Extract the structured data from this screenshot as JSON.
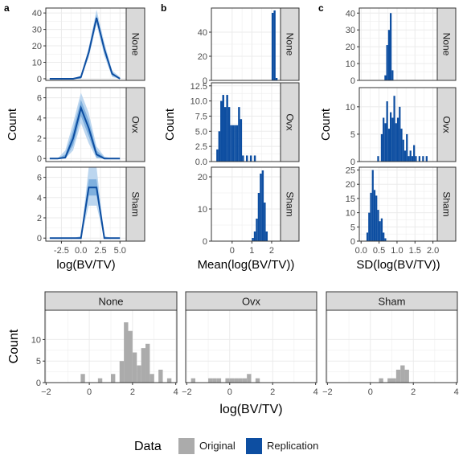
{
  "colors": {
    "original": "#ababab",
    "replication": "#0d4ea1",
    "band_light": "#bcd6ef",
    "band_mid": "#7fb0de",
    "strip_fill": "#d9d9d9",
    "grid": "#ebebeb",
    "panel_border": "#333333"
  },
  "legend": {
    "title": "Data",
    "items": [
      {
        "label": "Original",
        "color": "#ababab"
      },
      {
        "label": "Replication",
        "color": "#0d4ea1"
      }
    ]
  },
  "chart_data": [
    {
      "id": "a",
      "panel_label": "a",
      "type": "line",
      "ylabel": "Count",
      "xlabel": "log(BV/TV)",
      "xlim": [
        -4.5,
        5.8
      ],
      "xticks": [
        -2.5,
        0.0,
        2.5,
        5.0
      ],
      "xtick_labels": [
        "-2.5",
        "0.0",
        "2.5",
        "5.0"
      ],
      "facets": [
        {
          "strip": "None",
          "ylim": [
            -1,
            43
          ],
          "yticks": [
            0,
            10,
            20,
            30,
            40
          ],
          "x": [
            -4,
            -3,
            -2,
            -1,
            0,
            1,
            2,
            3,
            4,
            5
          ],
          "median": [
            0,
            0,
            0,
            0,
            1,
            16,
            37,
            18,
            3,
            0
          ],
          "band_outer": {
            "lo": [
              0,
              0,
              0,
              0,
              0,
              13,
              33,
              14,
              1,
              0
            ],
            "hi": [
              0,
              0,
              0,
              0,
              2,
              19,
              42,
              22,
              5,
              1
            ]
          },
          "band_inner": {
            "lo": [
              0,
              0,
              0,
              0,
              0,
              15,
              35,
              16,
              2,
              0
            ],
            "hi": [
              0,
              0,
              0,
              0,
              1,
              17,
              39,
              20,
              4,
              0
            ]
          }
        },
        {
          "strip": "Ovx",
          "ylim": [
            -0.3,
            7
          ],
          "yticks": [
            0,
            2,
            4,
            6
          ],
          "x": [
            -4,
            -3,
            -2,
            -1,
            0,
            1,
            2,
            3,
            4,
            5
          ],
          "median": [
            0,
            0,
            0.1,
            2.0,
            5.0,
            3.0,
            0.4,
            0.0,
            0,
            0
          ],
          "band_outer": {
            "lo": [
              0,
              0,
              0,
              0.8,
              3.5,
              1.5,
              0,
              0,
              0,
              0
            ],
            "hi": [
              0,
              0,
              0.8,
              3.5,
              6.5,
              4.5,
              1.2,
              0.2,
              0,
              0
            ]
          },
          "band_inner": {
            "lo": [
              0,
              0,
              0,
              1.3,
              4.2,
              2.2,
              0.1,
              0,
              0,
              0
            ],
            "hi": [
              0,
              0,
              0.4,
              2.8,
              5.8,
              3.8,
              0.8,
              0.1,
              0,
              0
            ]
          }
        },
        {
          "strip": "Sham",
          "ylim": [
            -0.3,
            7
          ],
          "yticks": [
            0,
            2,
            4,
            6
          ],
          "x": [
            -4,
            -3,
            -2,
            -1,
            0,
            1,
            2,
            3,
            4,
            5
          ],
          "median": [
            0,
            0,
            0,
            0,
            0,
            5.0,
            5.0,
            0,
            0,
            0
          ],
          "band_outer": {
            "lo": [
              0,
              0,
              0,
              0,
              0,
              3.2,
              3.2,
              0,
              0,
              0
            ],
            "hi": [
              0,
              0,
              0,
              0,
              0.2,
              7.0,
              7.0,
              0.2,
              0,
              0
            ]
          },
          "band_inner": {
            "lo": [
              0,
              0,
              0,
              0,
              0,
              4.2,
              4.2,
              0,
              0,
              0
            ],
            "hi": [
              0,
              0,
              0,
              0,
              0.1,
              5.8,
              5.8,
              0.1,
              0,
              0
            ]
          }
        }
      ]
    },
    {
      "id": "b",
      "panel_label": "b",
      "type": "bar",
      "ylabel": "Count",
      "xlabel": "Mean(log(BV/TV))",
      "xlim": [
        -1.05,
        2.45
      ],
      "xticks": [
        0,
        1,
        2
      ],
      "xtick_labels": [
        "0",
        "1",
        "2"
      ],
      "bin_width": 0.1,
      "facets": [
        {
          "strip": "None",
          "ylim": [
            0,
            60
          ],
          "yticks": [
            0,
            20,
            40
          ],
          "bins_start": [
            2.0,
            2.1,
            2.2
          ],
          "counts": [
            56,
            58,
            2
          ]
        },
        {
          "strip": "Ovx",
          "ylim": [
            0,
            13
          ],
          "yticks": [
            0.0,
            2.5,
            5.0,
            7.5,
            10.0,
            12.5
          ],
          "ytick_labels": [
            "0.0",
            "2.5",
            "5.0",
            "7.5",
            "10.0",
            "12.5"
          ],
          "bins_start": [
            -0.8,
            -0.7,
            -0.6,
            -0.5,
            -0.4,
            -0.3,
            -0.2,
            -0.1,
            0.0,
            0.1,
            0.2,
            0.3,
            0.4,
            0.5,
            0.7,
            0.9,
            1.1
          ],
          "counts": [
            2,
            5,
            10,
            11,
            9,
            11,
            9,
            6,
            6,
            6,
            6,
            9,
            7,
            1,
            1,
            1,
            1
          ]
        },
        {
          "strip": "Sham",
          "ylim": [
            0,
            23
          ],
          "yticks": [
            0,
            10,
            20
          ],
          "bins_start": [
            1.0,
            1.1,
            1.2,
            1.3,
            1.4,
            1.5,
            1.6,
            1.7
          ],
          "counts": [
            1,
            3,
            7,
            15,
            21,
            22,
            12,
            3
          ]
        }
      ]
    },
    {
      "id": "c",
      "panel_label": "c",
      "type": "bar",
      "ylabel": "Count",
      "xlabel": "SD(log(BV/TV))",
      "xlim": [
        -0.05,
        2.12
      ],
      "xticks": [
        0.0,
        0.5,
        1.0,
        1.5,
        2.0
      ],
      "xtick_labels": [
        "0.0",
        "0.5",
        "1.0",
        "1.5",
        "2.0"
      ],
      "bin_width": 0.05,
      "facets": [
        {
          "strip": "None",
          "ylim": [
            0,
            43
          ],
          "yticks": [
            0,
            10,
            20,
            30,
            40
          ],
          "bins_start": [
            0.65,
            0.7,
            0.75,
            0.8,
            0.85
          ],
          "counts": [
            3,
            21,
            30,
            40,
            6
          ]
        },
        {
          "strip": "Ovx",
          "ylim": [
            0,
            13.5
          ],
          "yticks": [
            0,
            5,
            10
          ],
          "bins_start": [
            0.45,
            0.55,
            0.6,
            0.65,
            0.7,
            0.75,
            0.8,
            0.85,
            0.9,
            0.95,
            1.0,
            1.05,
            1.1,
            1.15,
            1.2,
            1.25,
            1.3,
            1.35,
            1.4,
            1.45,
            1.5,
            1.6,
            1.7,
            1.8
          ],
          "counts": [
            1,
            5,
            8,
            7,
            11,
            6,
            9,
            8,
            12,
            7,
            8,
            10,
            6,
            4,
            2,
            5,
            1,
            2,
            1,
            3,
            1,
            1,
            1,
            1
          ]
        },
        {
          "strip": "Sham",
          "ylim": [
            0,
            26
          ],
          "yticks": [
            0,
            5,
            10,
            15,
            20,
            25
          ],
          "bins_start": [
            0.15,
            0.2,
            0.25,
            0.3,
            0.35,
            0.4,
            0.45,
            0.5,
            0.55,
            0.6,
            0.65
          ],
          "counts": [
            3,
            10,
            17,
            25,
            18,
            16,
            11,
            7,
            8,
            3,
            1
          ]
        }
      ]
    },
    {
      "id": "d",
      "type": "bar",
      "ylabel": "Count",
      "xlabel": "log(BV/TV)",
      "xlim": [
        -2.05,
        4.05
      ],
      "xticks": [
        -2,
        0,
        2,
        4
      ],
      "xtick_labels": [
        "−2",
        "0",
        "2",
        "4"
      ],
      "ylim": [
        0,
        16.8
      ],
      "yticks": [
        0,
        5,
        10
      ],
      "bin_width": 0.2,
      "facets": [
        {
          "strip": "None",
          "bins_start": [
            -0.4,
            0.4,
            1.0,
            1.4,
            1.6,
            1.8,
            2.0,
            2.2,
            2.4,
            2.6,
            2.8,
            3.2,
            3.6
          ],
          "counts": [
            2,
            1,
            2,
            5,
            14,
            12,
            7,
            4,
            8,
            9,
            2,
            3,
            1
          ]
        },
        {
          "strip": "Ovx",
          "bins_start": [
            -1.8,
            -1.0,
            -0.8,
            -0.6,
            -0.2,
            0.0,
            0.2,
            0.4,
            0.6,
            0.8,
            1.2
          ],
          "counts": [
            1,
            1,
            1,
            1,
            1,
            1,
            1,
            1,
            1,
            2,
            1
          ]
        },
        {
          "strip": "Sham",
          "bins_start": [
            0.4,
            0.8,
            1.0,
            1.2,
            1.4,
            1.6
          ],
          "counts": [
            1,
            1,
            1,
            3,
            4,
            3
          ]
        }
      ]
    }
  ]
}
